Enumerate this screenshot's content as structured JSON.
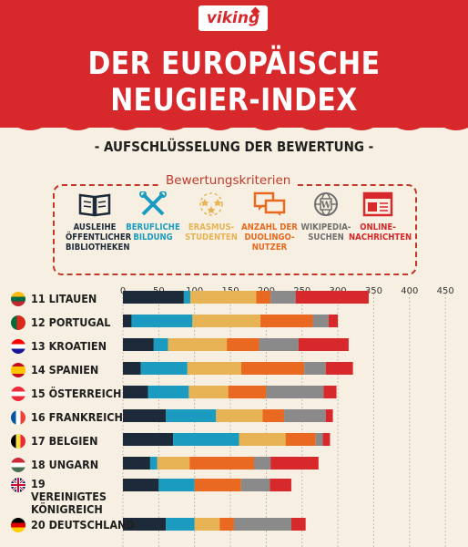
{
  "brand": {
    "logo": "viking"
  },
  "header": {
    "title": "DER EUROPÄISCHE NEUGIER-INDEX"
  },
  "subtitle": "- AUFSCHLÜSSELUNG DER BEWERTUNG -",
  "criteria": {
    "title": "Bewertungskriterien",
    "items": [
      {
        "name": "library",
        "icon": "book-icon",
        "label": "AUSLEIHE ÖFFENTLICHER BIBLIOTHEKEN",
        "color": "#1d2a3a"
      },
      {
        "name": "vocational",
        "icon": "tools-icon",
        "label": "BERUFLICHE BILDUNG",
        "color": "#1a9bbf"
      },
      {
        "name": "erasmus",
        "icon": "stars-icon",
        "label": "ERASMUS-STUDENTEN",
        "color": "#e7b355"
      },
      {
        "name": "duolingo",
        "icon": "speech-bubbles-icon",
        "label": "ANZAHL DER DUOLINGO-NUTZER",
        "color": "#e8691f"
      },
      {
        "name": "wikipedia",
        "icon": "globe-icon",
        "label": "WIKIPEDIA-SUCHEN",
        "color": "#8a8a8a"
      },
      {
        "name": "news",
        "icon": "browser-icon",
        "label": "ONLINE-NACHRICHTEN",
        "color": "#d7282c"
      }
    ]
  },
  "chart_data": {
    "type": "bar",
    "stacked": true,
    "orientation": "horizontal",
    "x_ticks": [
      0,
      50,
      100,
      150,
      200,
      250,
      300,
      350,
      400,
      450
    ],
    "xlim": [
      0,
      450
    ],
    "grid": true,
    "categories": [
      "11 LITAUEN",
      "12 PORTUGAL",
      "13 KROATIEN",
      "14 SPANIEN",
      "15 ÖSTERREICH",
      "16 FRANKREICH",
      "17 BELGIEN",
      "18 UNGARN",
      "19 VEREINIGTES KÖNIGREICH",
      "20 DEUTSCHLAND"
    ],
    "flags": [
      "LT",
      "PT",
      "HR",
      "ES",
      "AT",
      "FR",
      "BE",
      "HU",
      "GB",
      "DE"
    ],
    "series": [
      {
        "name": "AUSLEIHE ÖFFENTLICHER BIBLIOTHEKEN",
        "color": "#1d2a3a",
        "values": [
          85,
          12,
          43,
          25,
          35,
          60,
          70,
          38,
          50,
          60
        ]
      },
      {
        "name": "BERUFLICHE BILDUNG",
        "color": "#1a9bbf",
        "values": [
          9,
          85,
          20,
          65,
          57,
          70,
          92,
          10,
          50,
          40
        ]
      },
      {
        "name": "ERASMUS-STUDENTEN",
        "color": "#e7b355",
        "values": [
          92,
          95,
          82,
          75,
          55,
          65,
          65,
          45,
          0,
          35
        ]
      },
      {
        "name": "ANZAHL DER DUOLINGO-NUTZER",
        "color": "#e8691f",
        "values": [
          20,
          73,
          45,
          88,
          53,
          30,
          42,
          90,
          65,
          20
        ]
      },
      {
        "name": "WIKIPEDIA-SUCHEN",
        "color": "#8a8a8a",
        "values": [
          35,
          22,
          55,
          30,
          80,
          58,
          10,
          23,
          40,
          80
        ]
      },
      {
        "name": "ONLINE-NACHRICHTEN",
        "color": "#d7282c",
        "values": [
          102,
          13,
          70,
          38,
          18,
          10,
          10,
          67,
          30,
          20
        ]
      }
    ]
  }
}
